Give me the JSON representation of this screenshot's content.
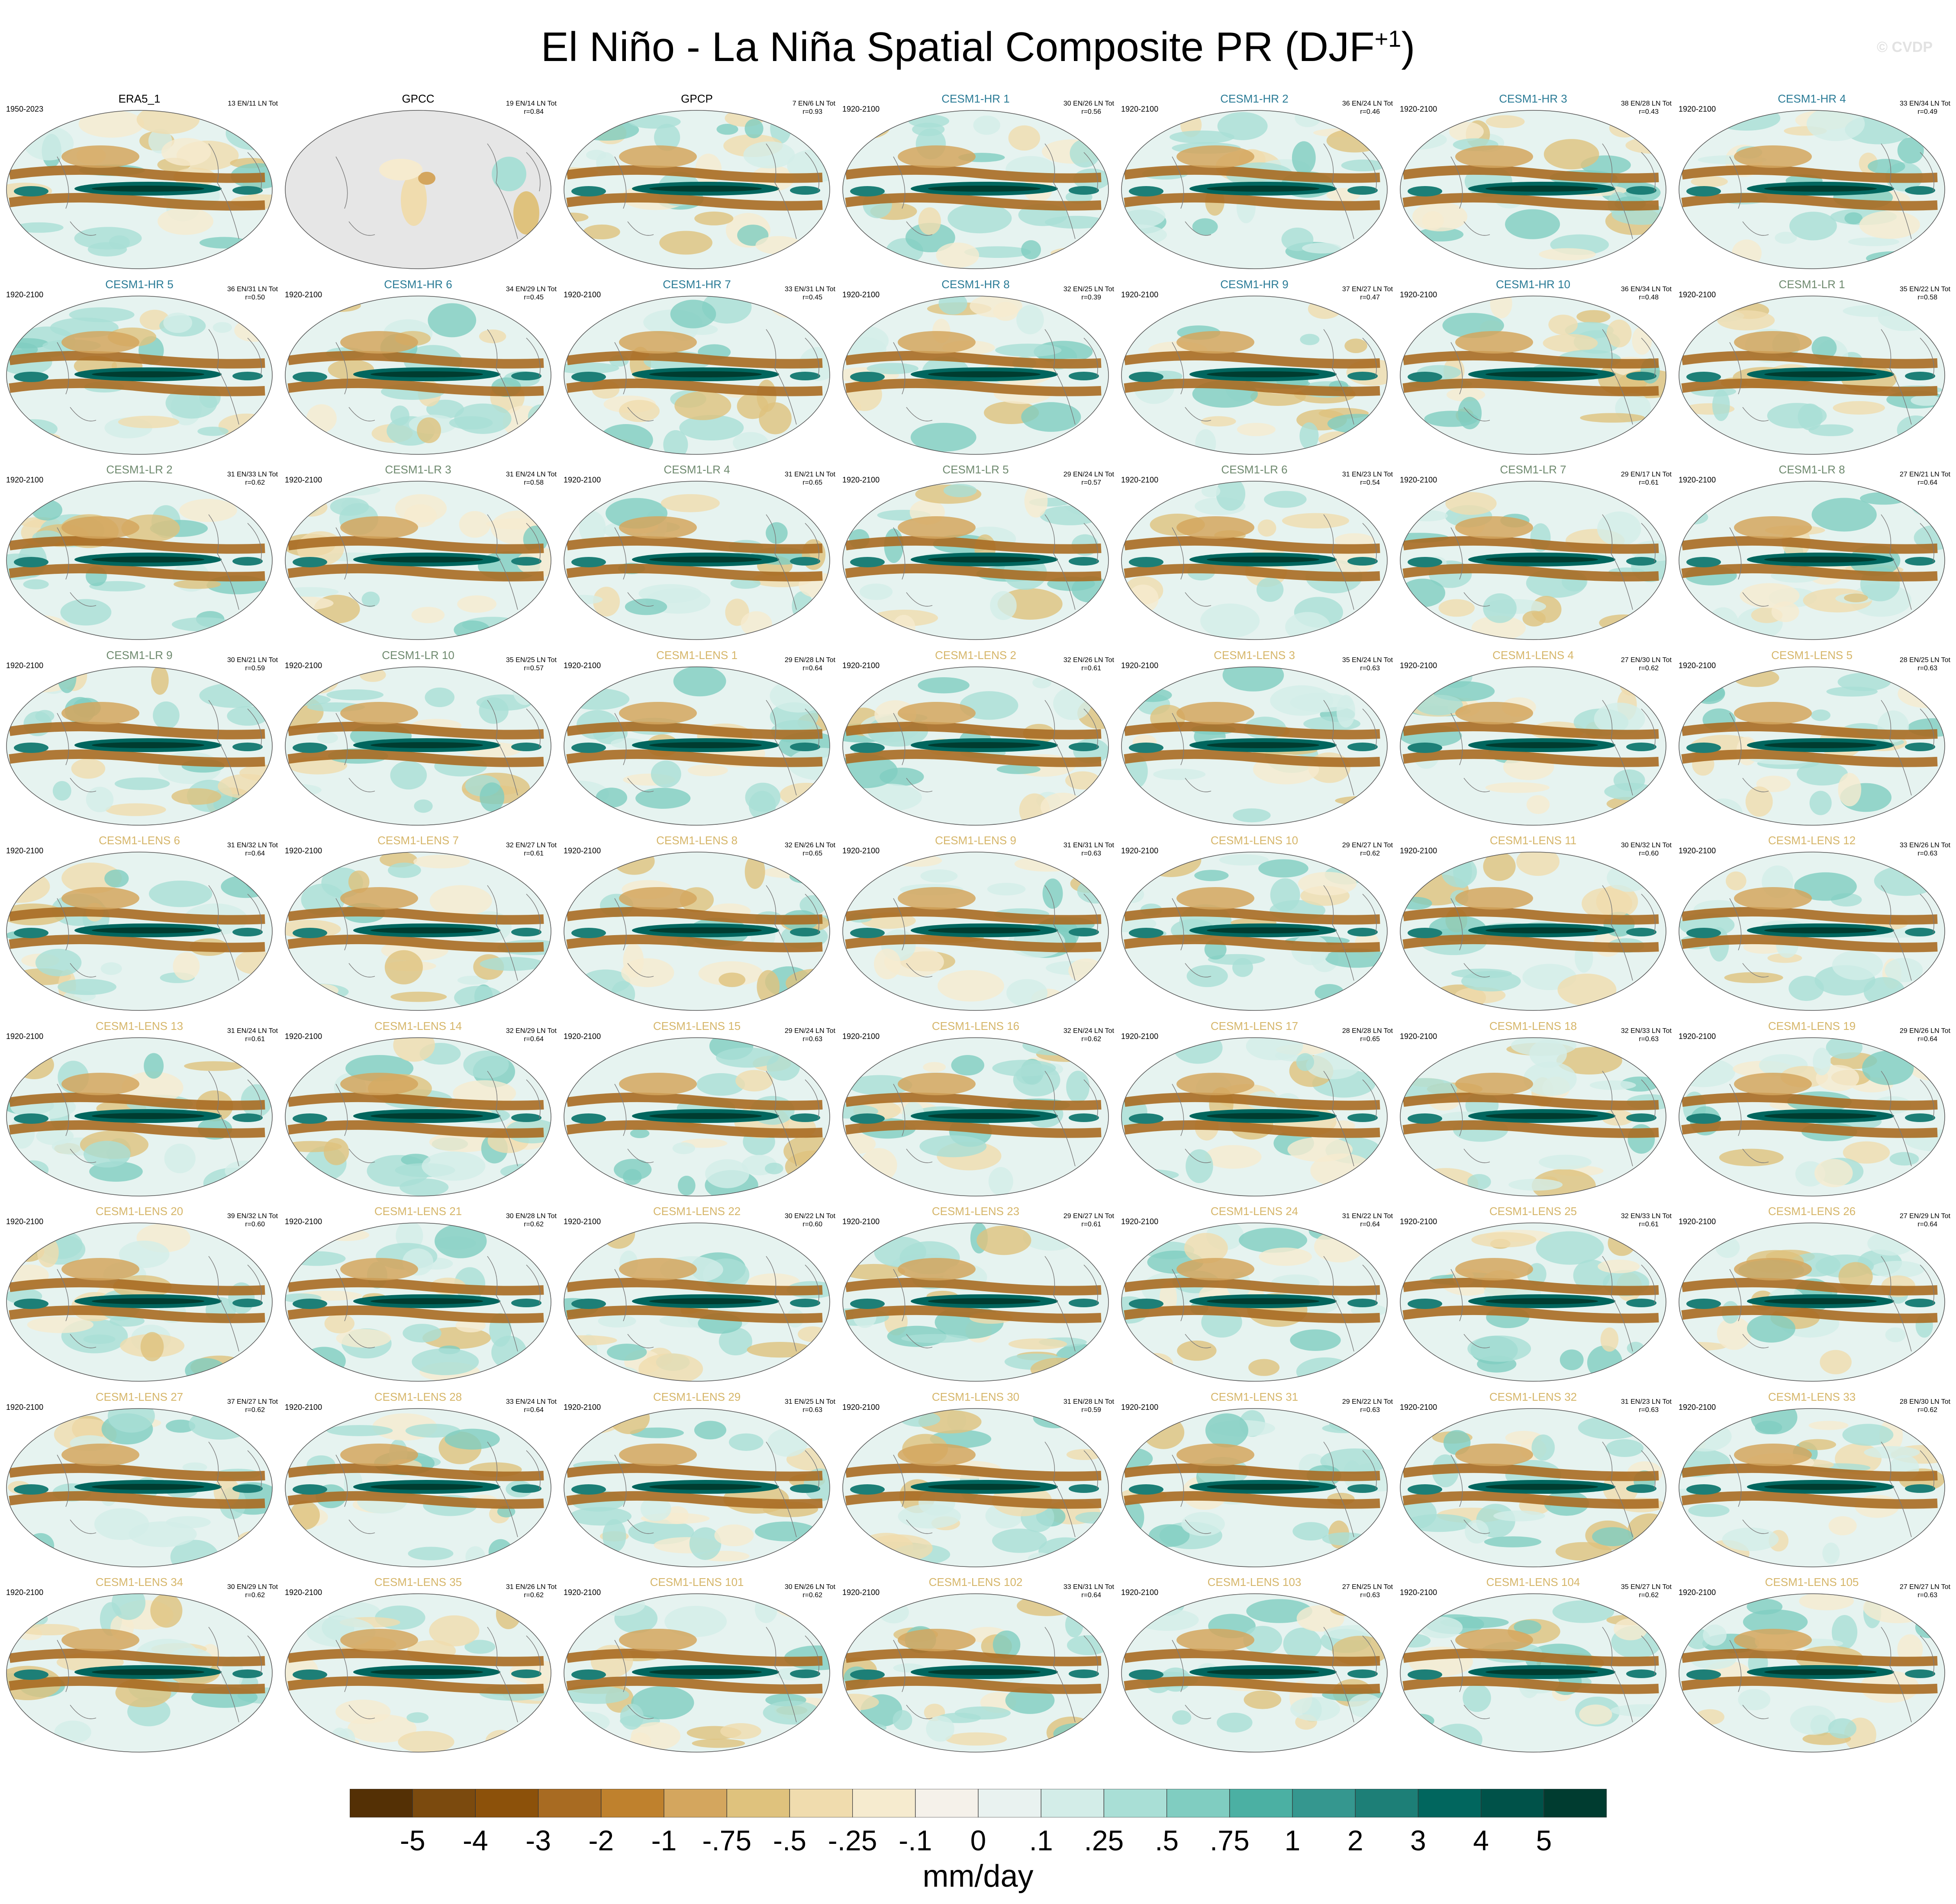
{
  "title": "El Niño - La Niña Spatial Composite PR (DJF",
  "title_superscript": "+1",
  "title_close": ")",
  "watermark": "© CVDP",
  "colors": {
    "group": {
      "obs": "#000000",
      "hr": "#2a7b96",
      "lr": "#6f8a6f",
      "lens": "#d6b66a"
    }
  },
  "chart_data": {
    "type": "heatmap",
    "title": "El Niño - La Niña Spatial Composite PR (DJF+1)",
    "units": "mm/day",
    "colorbar": {
      "labels": [
        "-5",
        "-4",
        "-3",
        "-2",
        "-1",
        "-.75",
        "-.5",
        "-.25",
        "-.1",
        "0",
        ".1",
        ".25",
        ".5",
        ".75",
        "1",
        "2",
        "3",
        "4",
        "5"
      ],
      "colors": [
        "#543005",
        "#7b4a0e",
        "#8c510a",
        "#a86b22",
        "#bf812d",
        "#d4a65e",
        "#dfc27d",
        "#f0dcae",
        "#f6ebcf",
        "#f5f1ea",
        "#e9f2f0",
        "#d3ede8",
        "#a9dfd6",
        "#80cdc1",
        "#4bb0a3",
        "#35978f",
        "#1d7f77",
        "#01665e",
        "#005249",
        "#003c30"
      ]
    },
    "panels": [
      {
        "name": "ERA5_1",
        "period": "1950-2023",
        "stats1": "13 EN/11 LN Tot",
        "stats2": "",
        "group": "obs"
      },
      {
        "name": "GPCC",
        "period": "",
        "stats1": "19 EN/14 LN Tot",
        "stats2": "r=0.84",
        "group": "obs"
      },
      {
        "name": "GPCP",
        "period": "",
        "stats1": "7 EN/6 LN Tot",
        "stats2": "r=0.93",
        "group": "obs"
      },
      {
        "name": "CESM1-HR 1",
        "period": "1920-2100",
        "stats1": "30 EN/26 LN Tot",
        "stats2": "r=0.56",
        "group": "hr"
      },
      {
        "name": "CESM1-HR 2",
        "period": "1920-2100",
        "stats1": "36 EN/24 LN Tot",
        "stats2": "r=0.46",
        "group": "hr"
      },
      {
        "name": "CESM1-HR 3",
        "period": "1920-2100",
        "stats1": "38 EN/28 LN Tot",
        "stats2": "r=0.43",
        "group": "hr"
      },
      {
        "name": "CESM1-HR 4",
        "period": "1920-2100",
        "stats1": "33 EN/34 LN Tot",
        "stats2": "r=0.49",
        "group": "hr"
      },
      {
        "name": "CESM1-HR 5",
        "period": "1920-2100",
        "stats1": "36 EN/31 LN Tot",
        "stats2": "r=0.50",
        "group": "hr"
      },
      {
        "name": "CESM1-HR 6",
        "period": "1920-2100",
        "stats1": "34 EN/29 LN Tot",
        "stats2": "r=0.45",
        "group": "hr"
      },
      {
        "name": "CESM1-HR 7",
        "period": "1920-2100",
        "stats1": "33 EN/31 LN Tot",
        "stats2": "r=0.45",
        "group": "hr"
      },
      {
        "name": "CESM1-HR 8",
        "period": "1920-2100",
        "stats1": "32 EN/25 LN Tot",
        "stats2": "r=0.39",
        "group": "hr"
      },
      {
        "name": "CESM1-HR 9",
        "period": "1920-2100",
        "stats1": "37 EN/27 LN Tot",
        "stats2": "r=0.47",
        "group": "hr"
      },
      {
        "name": "CESM1-HR 10",
        "period": "1920-2100",
        "stats1": "36 EN/34 LN Tot",
        "stats2": "r=0.48",
        "group": "hr"
      },
      {
        "name": "CESM1-LR 1",
        "period": "1920-2100",
        "stats1": "35 EN/22 LN Tot",
        "stats2": "r=0.58",
        "group": "lr"
      },
      {
        "name": "CESM1-LR 2",
        "period": "1920-2100",
        "stats1": "31 EN/33 LN Tot",
        "stats2": "r=0.62",
        "group": "lr"
      },
      {
        "name": "CESM1-LR 3",
        "period": "1920-2100",
        "stats1": "31 EN/24 LN Tot",
        "stats2": "r=0.58",
        "group": "lr"
      },
      {
        "name": "CESM1-LR 4",
        "period": "1920-2100",
        "stats1": "31 EN/21 LN Tot",
        "stats2": "r=0.65",
        "group": "lr"
      },
      {
        "name": "CESM1-LR 5",
        "period": "1920-2100",
        "stats1": "29 EN/24 LN Tot",
        "stats2": "r=0.57",
        "group": "lr"
      },
      {
        "name": "CESM1-LR 6",
        "period": "1920-2100",
        "stats1": "31 EN/23 LN Tot",
        "stats2": "r=0.54",
        "group": "lr"
      },
      {
        "name": "CESM1-LR 7",
        "period": "1920-2100",
        "stats1": "29 EN/17 LN Tot",
        "stats2": "r=0.61",
        "group": "lr"
      },
      {
        "name": "CESM1-LR 8",
        "period": "1920-2100",
        "stats1": "27 EN/21 LN Tot",
        "stats2": "r=0.64",
        "group": "lr"
      },
      {
        "name": "CESM1-LR 9",
        "period": "1920-2100",
        "stats1": "30 EN/21 LN Tot",
        "stats2": "r=0.59",
        "group": "lr"
      },
      {
        "name": "CESM1-LR 10",
        "period": "1920-2100",
        "stats1": "35 EN/25 LN Tot",
        "stats2": "r=0.57",
        "group": "lr"
      },
      {
        "name": "CESM1-LENS 1",
        "period": "1920-2100",
        "stats1": "29 EN/28 LN Tot",
        "stats2": "r=0.64",
        "group": "lens"
      },
      {
        "name": "CESM1-LENS 2",
        "period": "1920-2100",
        "stats1": "32 EN/26 LN Tot",
        "stats2": "r=0.61",
        "group": "lens"
      },
      {
        "name": "CESM1-LENS 3",
        "period": "1920-2100",
        "stats1": "35 EN/24 LN Tot",
        "stats2": "r=0.63",
        "group": "lens"
      },
      {
        "name": "CESM1-LENS 4",
        "period": "1920-2100",
        "stats1": "27 EN/30 LN Tot",
        "stats2": "r=0.62",
        "group": "lens"
      },
      {
        "name": "CESM1-LENS 5",
        "period": "1920-2100",
        "stats1": "28 EN/25 LN Tot",
        "stats2": "r=0.63",
        "group": "lens"
      },
      {
        "name": "CESM1-LENS 6",
        "period": "1920-2100",
        "stats1": "31 EN/32 LN Tot",
        "stats2": "r=0.64",
        "group": "lens"
      },
      {
        "name": "CESM1-LENS 7",
        "period": "1920-2100",
        "stats1": "32 EN/27 LN Tot",
        "stats2": "r=0.61",
        "group": "lens"
      },
      {
        "name": "CESM1-LENS 8",
        "period": "1920-2100",
        "stats1": "32 EN/26 LN Tot",
        "stats2": "r=0.65",
        "group": "lens"
      },
      {
        "name": "CESM1-LENS 9",
        "period": "1920-2100",
        "stats1": "31 EN/31 LN Tot",
        "stats2": "r=0.63",
        "group": "lens"
      },
      {
        "name": "CESM1-LENS 10",
        "period": "1920-2100",
        "stats1": "29 EN/27 LN Tot",
        "stats2": "r=0.62",
        "group": "lens"
      },
      {
        "name": "CESM1-LENS 11",
        "period": "1920-2100",
        "stats1": "30 EN/32 LN Tot",
        "stats2": "r=0.60",
        "group": "lens"
      },
      {
        "name": "CESM1-LENS 12",
        "period": "1920-2100",
        "stats1": "33 EN/26 LN Tot",
        "stats2": "r=0.63",
        "group": "lens"
      },
      {
        "name": "CESM1-LENS 13",
        "period": "1920-2100",
        "stats1": "31 EN/24 LN Tot",
        "stats2": "r=0.61",
        "group": "lens"
      },
      {
        "name": "CESM1-LENS 14",
        "period": "1920-2100",
        "stats1": "32 EN/29 LN Tot",
        "stats2": "r=0.64",
        "group": "lens"
      },
      {
        "name": "CESM1-LENS 15",
        "period": "1920-2100",
        "stats1": "29 EN/24 LN Tot",
        "stats2": "r=0.63",
        "group": "lens"
      },
      {
        "name": "CESM1-LENS 16",
        "period": "1920-2100",
        "stats1": "32 EN/24 LN Tot",
        "stats2": "r=0.62",
        "group": "lens"
      },
      {
        "name": "CESM1-LENS 17",
        "period": "1920-2100",
        "stats1": "28 EN/28 LN Tot",
        "stats2": "r=0.65",
        "group": "lens"
      },
      {
        "name": "CESM1-LENS 18",
        "period": "1920-2100",
        "stats1": "32 EN/33 LN Tot",
        "stats2": "r=0.63",
        "group": "lens"
      },
      {
        "name": "CESM1-LENS 19",
        "period": "1920-2100",
        "stats1": "29 EN/26 LN Tot",
        "stats2": "r=0.64",
        "group": "lens"
      },
      {
        "name": "CESM1-LENS 20",
        "period": "1920-2100",
        "stats1": "39 EN/32 LN Tot",
        "stats2": "r=0.60",
        "group": "lens"
      },
      {
        "name": "CESM1-LENS 21",
        "period": "1920-2100",
        "stats1": "30 EN/28 LN Tot",
        "stats2": "r=0.62",
        "group": "lens"
      },
      {
        "name": "CESM1-LENS 22",
        "period": "1920-2100",
        "stats1": "30 EN/22 LN Tot",
        "stats2": "r=0.60",
        "group": "lens"
      },
      {
        "name": "CESM1-LENS 23",
        "period": "1920-2100",
        "stats1": "29 EN/27 LN Tot",
        "stats2": "r=0.61",
        "group": "lens"
      },
      {
        "name": "CESM1-LENS 24",
        "period": "1920-2100",
        "stats1": "31 EN/22 LN Tot",
        "stats2": "r=0.64",
        "group": "lens"
      },
      {
        "name": "CESM1-LENS 25",
        "period": "1920-2100",
        "stats1": "32 EN/33 LN Tot",
        "stats2": "r=0.61",
        "group": "lens"
      },
      {
        "name": "CESM1-LENS 26",
        "period": "1920-2100",
        "stats1": "27 EN/29 LN Tot",
        "stats2": "r=0.64",
        "group": "lens"
      },
      {
        "name": "CESM1-LENS 27",
        "period": "1920-2100",
        "stats1": "37 EN/27 LN Tot",
        "stats2": "r=0.62",
        "group": "lens"
      },
      {
        "name": "CESM1-LENS 28",
        "period": "1920-2100",
        "stats1": "33 EN/24 LN Tot",
        "stats2": "r=0.64",
        "group": "lens"
      },
      {
        "name": "CESM1-LENS 29",
        "period": "1920-2100",
        "stats1": "31 EN/25 LN Tot",
        "stats2": "r=0.63",
        "group": "lens"
      },
      {
        "name": "CESM1-LENS 30",
        "period": "1920-2100",
        "stats1": "31 EN/28 LN Tot",
        "stats2": "r=0.59",
        "group": "lens"
      },
      {
        "name": "CESM1-LENS 31",
        "period": "1920-2100",
        "stats1": "29 EN/22 LN Tot",
        "stats2": "r=0.63",
        "group": "lens"
      },
      {
        "name": "CESM1-LENS 32",
        "period": "1920-2100",
        "stats1": "31 EN/23 LN Tot",
        "stats2": "r=0.63",
        "group": "lens"
      },
      {
        "name": "CESM1-LENS 33",
        "period": "1920-2100",
        "stats1": "28 EN/30 LN Tot",
        "stats2": "r=0.62",
        "group": "lens"
      },
      {
        "name": "CESM1-LENS 34",
        "period": "1920-2100",
        "stats1": "30 EN/29 LN Tot",
        "stats2": "r=0.62",
        "group": "lens"
      },
      {
        "name": "CESM1-LENS 35",
        "period": "1920-2100",
        "stats1": "31 EN/26 LN Tot",
        "stats2": "r=0.62",
        "group": "lens"
      },
      {
        "name": "CESM1-LENS 101",
        "period": "1920-2100",
        "stats1": "30 EN/26 LN Tot",
        "stats2": "r=0.62",
        "group": "lens"
      },
      {
        "name": "CESM1-LENS 102",
        "period": "1920-2100",
        "stats1": "33 EN/31 LN Tot",
        "stats2": "r=0.64",
        "group": "lens"
      },
      {
        "name": "CESM1-LENS 103",
        "period": "1920-2100",
        "stats1": "27 EN/25 LN Tot",
        "stats2": "r=0.63",
        "group": "lens"
      },
      {
        "name": "CESM1-LENS 104",
        "period": "1920-2100",
        "stats1": "35 EN/27 LN Tot",
        "stats2": "r=0.62",
        "group": "lens"
      },
      {
        "name": "CESM1-LENS 105",
        "period": "1920-2100",
        "stats1": "27 EN/27 LN Tot",
        "stats2": "r=0.63",
        "group": "lens"
      }
    ]
  }
}
